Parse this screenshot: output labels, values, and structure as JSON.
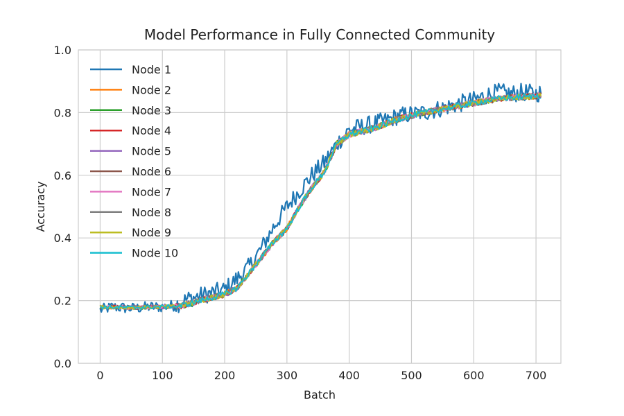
{
  "chart_data": {
    "type": "line",
    "title": "Model Performance in Fully Connected Community",
    "xlabel": "Batch",
    "ylabel": "Accuracy",
    "xlim": [
      -35,
      740
    ],
    "ylim": [
      0.0,
      1.0
    ],
    "xticks": [
      0,
      100,
      200,
      300,
      400,
      500,
      600,
      700
    ],
    "yticks": [
      0.0,
      0.2,
      0.4,
      0.6,
      0.8,
      1.0
    ],
    "xtick_labels": [
      "0",
      "100",
      "200",
      "300",
      "400",
      "500",
      "600",
      "700"
    ],
    "ytick_labels": [
      "0.0",
      "0.2",
      "0.4",
      "0.6",
      "0.8",
      "1.0"
    ],
    "grid": true,
    "legend_position": "upper-left",
    "x_range": [
      0,
      709
    ],
    "series": [
      {
        "name": "Node 1",
        "color": "#1f77b4",
        "noise": 0.018,
        "points": [
          [
            0,
            0.17
          ],
          [
            20,
            0.18
          ],
          [
            50,
            0.175
          ],
          [
            80,
            0.18
          ],
          [
            100,
            0.18
          ],
          [
            120,
            0.185
          ],
          [
            140,
            0.205
          ],
          [
            160,
            0.215
          ],
          [
            180,
            0.225
          ],
          [
            200,
            0.235
          ],
          [
            220,
            0.27
          ],
          [
            240,
            0.31
          ],
          [
            260,
            0.37
          ],
          [
            280,
            0.44
          ],
          [
            300,
            0.5
          ],
          [
            320,
            0.55
          ],
          [
            340,
            0.6
          ],
          [
            360,
            0.64
          ],
          [
            380,
            0.7
          ],
          [
            400,
            0.745
          ],
          [
            420,
            0.755
          ],
          [
            440,
            0.765
          ],
          [
            460,
            0.775
          ],
          [
            480,
            0.79
          ],
          [
            500,
            0.795
          ],
          [
            520,
            0.8
          ],
          [
            540,
            0.81
          ],
          [
            560,
            0.82
          ],
          [
            580,
            0.83
          ],
          [
            600,
            0.84
          ],
          [
            620,
            0.855
          ],
          [
            640,
            0.865
          ],
          [
            660,
            0.86
          ],
          [
            680,
            0.865
          ],
          [
            700,
            0.86
          ],
          [
            709,
            0.865
          ]
        ]
      },
      {
        "name": "Node 2",
        "color": "#ff7f0e",
        "noise": 0.006,
        "points": [
          [
            0,
            0.18
          ],
          [
            50,
            0.178
          ],
          [
            100,
            0.18
          ],
          [
            130,
            0.183
          ],
          [
            160,
            0.2
          ],
          [
            200,
            0.22
          ],
          [
            220,
            0.24
          ],
          [
            240,
            0.29
          ],
          [
            260,
            0.34
          ],
          [
            280,
            0.39
          ],
          [
            300,
            0.43
          ],
          [
            320,
            0.5
          ],
          [
            340,
            0.56
          ],
          [
            360,
            0.61
          ],
          [
            380,
            0.7
          ],
          [
            400,
            0.73
          ],
          [
            440,
            0.75
          ],
          [
            480,
            0.78
          ],
          [
            520,
            0.8
          ],
          [
            560,
            0.815
          ],
          [
            600,
            0.83
          ],
          [
            640,
            0.845
          ],
          [
            680,
            0.85
          ],
          [
            709,
            0.855
          ]
        ]
      },
      {
        "name": "Node 3",
        "color": "#2ca02c",
        "noise": 0.006,
        "points": [
          [
            0,
            0.18
          ],
          [
            50,
            0.178
          ],
          [
            100,
            0.18
          ],
          [
            130,
            0.183
          ],
          [
            160,
            0.2
          ],
          [
            200,
            0.22
          ],
          [
            220,
            0.24
          ],
          [
            240,
            0.29
          ],
          [
            260,
            0.34
          ],
          [
            280,
            0.39
          ],
          [
            300,
            0.43
          ],
          [
            320,
            0.5
          ],
          [
            340,
            0.56
          ],
          [
            360,
            0.61
          ],
          [
            380,
            0.7
          ],
          [
            400,
            0.73
          ],
          [
            440,
            0.75
          ],
          [
            480,
            0.78
          ],
          [
            520,
            0.8
          ],
          [
            560,
            0.815
          ],
          [
            600,
            0.83
          ],
          [
            640,
            0.845
          ],
          [
            680,
            0.85
          ],
          [
            709,
            0.855
          ]
        ]
      },
      {
        "name": "Node 4",
        "color": "#d62728",
        "noise": 0.006,
        "points": [
          [
            0,
            0.18
          ],
          [
            50,
            0.178
          ],
          [
            100,
            0.18
          ],
          [
            130,
            0.183
          ],
          [
            160,
            0.2
          ],
          [
            200,
            0.22
          ],
          [
            220,
            0.24
          ],
          [
            240,
            0.29
          ],
          [
            260,
            0.34
          ],
          [
            280,
            0.39
          ],
          [
            300,
            0.43
          ],
          [
            320,
            0.5
          ],
          [
            340,
            0.56
          ],
          [
            360,
            0.61
          ],
          [
            380,
            0.7
          ],
          [
            400,
            0.73
          ],
          [
            440,
            0.75
          ],
          [
            480,
            0.78
          ],
          [
            520,
            0.8
          ],
          [
            560,
            0.815
          ],
          [
            600,
            0.83
          ],
          [
            640,
            0.845
          ],
          [
            680,
            0.85
          ],
          [
            709,
            0.855
          ]
        ]
      },
      {
        "name": "Node 5",
        "color": "#9467bd",
        "noise": 0.006,
        "points": [
          [
            0,
            0.18
          ],
          [
            50,
            0.178
          ],
          [
            100,
            0.18
          ],
          [
            130,
            0.183
          ],
          [
            160,
            0.2
          ],
          [
            200,
            0.22
          ],
          [
            220,
            0.24
          ],
          [
            240,
            0.29
          ],
          [
            260,
            0.34
          ],
          [
            280,
            0.39
          ],
          [
            300,
            0.43
          ],
          [
            320,
            0.5
          ],
          [
            340,
            0.56
          ],
          [
            360,
            0.61
          ],
          [
            380,
            0.7
          ],
          [
            400,
            0.73
          ],
          [
            440,
            0.75
          ],
          [
            480,
            0.78
          ],
          [
            520,
            0.8
          ],
          [
            560,
            0.815
          ],
          [
            600,
            0.83
          ],
          [
            640,
            0.845
          ],
          [
            680,
            0.85
          ],
          [
            709,
            0.855
          ]
        ]
      },
      {
        "name": "Node 6",
        "color": "#8c564b",
        "noise": 0.006,
        "points": [
          [
            0,
            0.18
          ],
          [
            50,
            0.178
          ],
          [
            100,
            0.18
          ],
          [
            130,
            0.183
          ],
          [
            160,
            0.2
          ],
          [
            200,
            0.22
          ],
          [
            220,
            0.24
          ],
          [
            240,
            0.29
          ],
          [
            260,
            0.34
          ],
          [
            280,
            0.39
          ],
          [
            300,
            0.43
          ],
          [
            320,
            0.5
          ],
          [
            340,
            0.56
          ],
          [
            360,
            0.61
          ],
          [
            380,
            0.7
          ],
          [
            400,
            0.73
          ],
          [
            440,
            0.75
          ],
          [
            480,
            0.78
          ],
          [
            520,
            0.8
          ],
          [
            560,
            0.815
          ],
          [
            600,
            0.83
          ],
          [
            640,
            0.845
          ],
          [
            680,
            0.85
          ],
          [
            709,
            0.855
          ]
        ]
      },
      {
        "name": "Node 7",
        "color": "#e377c2",
        "noise": 0.006,
        "points": [
          [
            0,
            0.18
          ],
          [
            50,
            0.178
          ],
          [
            100,
            0.18
          ],
          [
            130,
            0.183
          ],
          [
            160,
            0.2
          ],
          [
            200,
            0.22
          ],
          [
            220,
            0.24
          ],
          [
            240,
            0.29
          ],
          [
            260,
            0.34
          ],
          [
            280,
            0.39
          ],
          [
            300,
            0.43
          ],
          [
            320,
            0.5
          ],
          [
            340,
            0.56
          ],
          [
            360,
            0.61
          ],
          [
            380,
            0.7
          ],
          [
            400,
            0.73
          ],
          [
            440,
            0.75
          ],
          [
            480,
            0.78
          ],
          [
            520,
            0.8
          ],
          [
            560,
            0.815
          ],
          [
            600,
            0.83
          ],
          [
            640,
            0.845
          ],
          [
            680,
            0.85
          ],
          [
            709,
            0.855
          ]
        ]
      },
      {
        "name": "Node 8",
        "color": "#7f7f7f",
        "noise": 0.006,
        "points": [
          [
            0,
            0.18
          ],
          [
            50,
            0.178
          ],
          [
            100,
            0.18
          ],
          [
            130,
            0.183
          ],
          [
            160,
            0.2
          ],
          [
            200,
            0.22
          ],
          [
            220,
            0.24
          ],
          [
            240,
            0.29
          ],
          [
            260,
            0.34
          ],
          [
            280,
            0.39
          ],
          [
            300,
            0.43
          ],
          [
            320,
            0.5
          ],
          [
            340,
            0.56
          ],
          [
            360,
            0.61
          ],
          [
            380,
            0.7
          ],
          [
            400,
            0.73
          ],
          [
            440,
            0.75
          ],
          [
            480,
            0.78
          ],
          [
            520,
            0.8
          ],
          [
            560,
            0.815
          ],
          [
            600,
            0.83
          ],
          [
            640,
            0.845
          ],
          [
            680,
            0.85
          ],
          [
            709,
            0.855
          ]
        ]
      },
      {
        "name": "Node 9",
        "color": "#bcbd22",
        "noise": 0.006,
        "points": [
          [
            0,
            0.18
          ],
          [
            50,
            0.178
          ],
          [
            100,
            0.18
          ],
          [
            130,
            0.183
          ],
          [
            160,
            0.2
          ],
          [
            200,
            0.22
          ],
          [
            220,
            0.24
          ],
          [
            240,
            0.29
          ],
          [
            260,
            0.34
          ],
          [
            280,
            0.39
          ],
          [
            300,
            0.43
          ],
          [
            320,
            0.5
          ],
          [
            340,
            0.56
          ],
          [
            360,
            0.61
          ],
          [
            380,
            0.7
          ],
          [
            400,
            0.73
          ],
          [
            440,
            0.75
          ],
          [
            480,
            0.78
          ],
          [
            520,
            0.8
          ],
          [
            560,
            0.815
          ],
          [
            600,
            0.83
          ],
          [
            640,
            0.845
          ],
          [
            680,
            0.85
          ],
          [
            709,
            0.855
          ]
        ]
      },
      {
        "name": "Node 10",
        "color": "#17becf",
        "noise": 0.006,
        "points": [
          [
            0,
            0.18
          ],
          [
            50,
            0.178
          ],
          [
            100,
            0.18
          ],
          [
            130,
            0.183
          ],
          [
            160,
            0.2
          ],
          [
            200,
            0.22
          ],
          [
            220,
            0.24
          ],
          [
            240,
            0.29
          ],
          [
            260,
            0.34
          ],
          [
            280,
            0.39
          ],
          [
            300,
            0.43
          ],
          [
            320,
            0.5
          ],
          [
            340,
            0.56
          ],
          [
            360,
            0.61
          ],
          [
            380,
            0.7
          ],
          [
            400,
            0.73
          ],
          [
            440,
            0.75
          ],
          [
            480,
            0.78
          ],
          [
            520,
            0.8
          ],
          [
            560,
            0.815
          ],
          [
            600,
            0.83
          ],
          [
            640,
            0.845
          ],
          [
            680,
            0.85
          ],
          [
            709,
            0.855
          ]
        ]
      }
    ]
  }
}
